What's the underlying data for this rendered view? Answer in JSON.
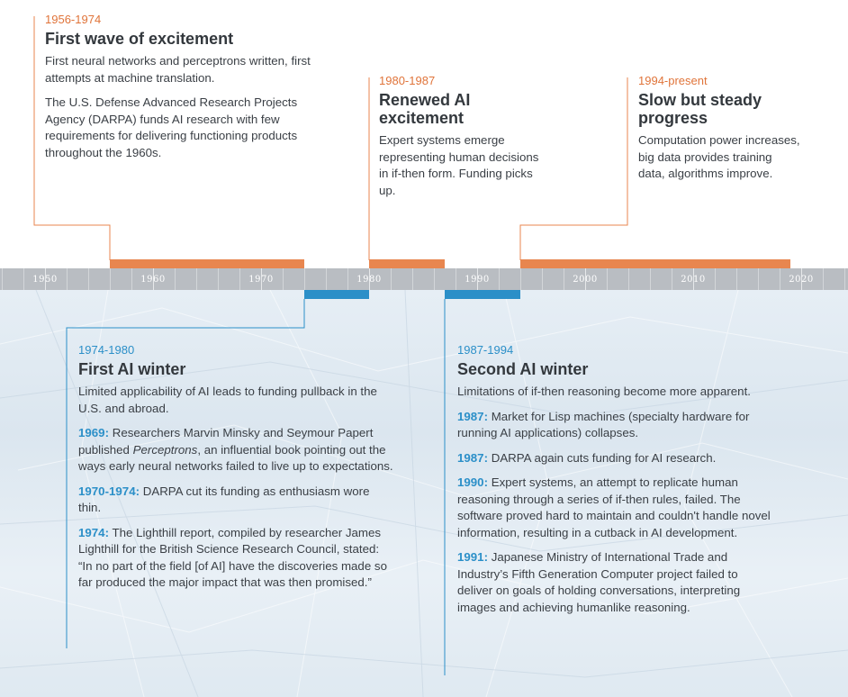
{
  "axis": {
    "years": [
      "1950",
      "1960",
      "1970",
      "1980",
      "1990",
      "2000",
      "2010",
      "2020"
    ]
  },
  "colors": {
    "orange": "#e8864f",
    "blue": "#2b8fc8",
    "axis": "#b9bdc2"
  },
  "events": {
    "first_wave": {
      "period": "1956-1974",
      "title": "First wave of excitement",
      "p1": "First neural networks and perceptrons written, first attempts at machine translation.",
      "p2": "The U.S. Defense Advanced Research Projects Agency (DARPA) funds AI research with few requirements for delivering functioning products throughout the 1960s."
    },
    "renewed": {
      "period": "1980-1987",
      "title": "Renewed AI excitement",
      "p1": "Expert systems emerge representing human decisions in if-then form. Funding picks up."
    },
    "slow": {
      "period": "1994-present",
      "title": "Slow but steady progress",
      "p1": "Computation power increases, big data provides training data, algorithms improve."
    },
    "winter1": {
      "period": "1974-1980",
      "title": "First AI winter",
      "p1": "Limited applicability of AI leads to funding pullback in the U.S. and abroad.",
      "e1_year": "1969:",
      "e1_pre": " Researchers Marvin Minsky and Seymour Papert published ",
      "e1_em": "Perceptrons",
      "e1_post": ", an influential book pointing out the ways early neural networks failed to live up to expectations.",
      "e2_year": "1970-1974:",
      "e2_text": " DARPA cut its funding as enthusiasm wore thin.",
      "e3_year": "1974:",
      "e3_text": " The Lighthill report, compiled by researcher James Lighthill for the British Science Research Council, stated: “In no part of the field [of AI] have the discoveries made so far produced the major impact that was then promised.”"
    },
    "winter2": {
      "period": "1987-1994",
      "title": "Second AI winter",
      "p1": "Limitations of if-then reasoning become more apparent.",
      "e1_year": "1987:",
      "e1_text": " Market for Lisp machines (specialty hardware for running AI applications) collapses.",
      "e2_year": "1987:",
      "e2_text": " DARPA again cuts funding for AI research.",
      "e3_year": "1990:",
      "e3_text": " Expert systems, an attempt to replicate human reasoning through a series of if-then rules, failed. The software proved hard to maintain and couldn't handle novel information, resulting in a cutback in AI development.",
      "e4_year": "1991:",
      "e4_text": " Japanese Ministry of International Trade and Industry’s Fifth Generation Computer project failed to deliver on goals of holding conversations, interpreting images and achieving humanlike reasoning."
    }
  }
}
